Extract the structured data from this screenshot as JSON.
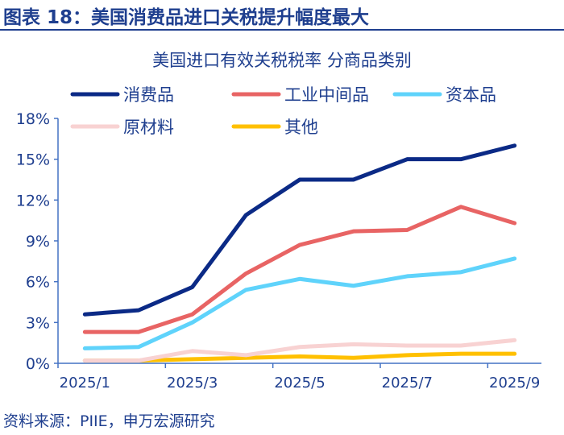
{
  "figure_title": "图表 18：美国消费品进口关税提升幅度最大",
  "source": "资料来源：PIIE，申万宏源研究",
  "chart_data": {
    "type": "line",
    "title": "美国进口有效关税税率 分商品类别",
    "categories": [
      "2025/1",
      "2025/2",
      "2025/3",
      "2025/4",
      "2025/5",
      "2025/6",
      "2025/7",
      "2025/8",
      "2025/9"
    ],
    "x_tick_labels": [
      "2025/1",
      "2025/3",
      "2025/5",
      "2025/7",
      "2025/9"
    ],
    "ylim": [
      0,
      18
    ],
    "y_tick_labels": [
      "0%",
      "3%",
      "6%",
      "9%",
      "12%",
      "15%",
      "18%"
    ],
    "grid": false,
    "legend_position": "top",
    "series": [
      {
        "name": "消费品",
        "color": "#0b2a86",
        "values": [
          3.6,
          3.9,
          5.6,
          10.9,
          13.5,
          13.5,
          15.0,
          15.0,
          16.0
        ]
      },
      {
        "name": "工业中间品",
        "color": "#e86464",
        "values": [
          2.3,
          2.3,
          3.6,
          6.6,
          8.7,
          9.7,
          9.8,
          11.5,
          10.3
        ]
      },
      {
        "name": "资本品",
        "color": "#5fd3fb",
        "values": [
          1.1,
          1.2,
          3.0,
          5.4,
          6.2,
          5.7,
          6.4,
          6.7,
          7.7
        ]
      },
      {
        "name": "原材料",
        "color": "#f8d2d2",
        "values": [
          0.2,
          0.2,
          0.9,
          0.6,
          1.2,
          1.4,
          1.3,
          1.3,
          1.7
        ]
      },
      {
        "name": "其他",
        "color": "#ffc000",
        "values": [
          0.2,
          0.2,
          0.3,
          0.4,
          0.5,
          0.4,
          0.6,
          0.7,
          0.7
        ]
      }
    ]
  }
}
